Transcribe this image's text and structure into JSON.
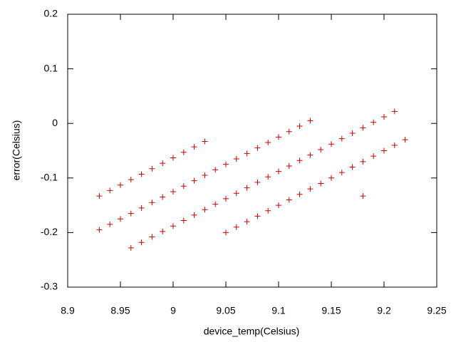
{
  "chart_data": {
    "type": "scatter",
    "xlabel": "device_temp(Celsius)",
    "ylabel": "error(Celsius)",
    "color": "#cc0000",
    "x": [
      8.93,
      8.94,
      8.95,
      8.96,
      8.97,
      8.98,
      8.99,
      9.0,
      9.01,
      9.02,
      9.03,
      8.93,
      8.94,
      8.95,
      8.96,
      8.97,
      8.98,
      8.99,
      9.0,
      9.01,
      9.02,
      9.03,
      9.04,
      9.05,
      9.06,
      9.07,
      9.08,
      9.09,
      9.1,
      9.11,
      9.12,
      9.13,
      8.96,
      8.97,
      8.98,
      8.99,
      9.0,
      9.01,
      9.02,
      9.03,
      9.04,
      9.05,
      9.06,
      9.07,
      9.08,
      9.09,
      9.1,
      9.11,
      9.12,
      9.13,
      9.14,
      9.15,
      9.16,
      9.17,
      9.18,
      9.19,
      9.2,
      9.21,
      9.05,
      9.06,
      9.07,
      9.08,
      9.09,
      9.1,
      9.11,
      9.12,
      9.13,
      9.14,
      9.15,
      9.16,
      9.17,
      9.18,
      9.19,
      9.2,
      9.21,
      9.22,
      9.18
    ],
    "values": [
      -0.133,
      -0.123,
      -0.113,
      -0.103,
      -0.093,
      -0.083,
      -0.073,
      -0.063,
      -0.053,
      -0.043,
      -0.033,
      -0.195,
      -0.185,
      -0.175,
      -0.165,
      -0.155,
      -0.145,
      -0.135,
      -0.125,
      -0.115,
      -0.105,
      -0.095,
      -0.085,
      -0.075,
      -0.065,
      -0.055,
      -0.045,
      -0.035,
      -0.025,
      -0.015,
      -0.005,
      0.005,
      -0.228,
      -0.218,
      -0.208,
      -0.198,
      -0.188,
      -0.178,
      -0.168,
      -0.158,
      -0.148,
      -0.138,
      -0.128,
      -0.118,
      -0.108,
      -0.098,
      -0.088,
      -0.078,
      -0.068,
      -0.058,
      -0.048,
      -0.038,
      -0.028,
      -0.018,
      -0.008,
      0.002,
      0.012,
      0.022,
      -0.2,
      -0.19,
      -0.18,
      -0.17,
      -0.16,
      -0.15,
      -0.14,
      -0.13,
      -0.12,
      -0.11,
      -0.1,
      -0.09,
      -0.08,
      -0.07,
      -0.06,
      -0.05,
      -0.04,
      -0.03,
      -0.133
    ],
    "xlim": [
      8.9,
      9.25
    ],
    "xticks": [
      8.9,
      8.95,
      9,
      9.05,
      9.1,
      9.15,
      9.2,
      9.25
    ],
    "ylim": [
      -0.3,
      0.2
    ],
    "yticks": [
      -0.3,
      -0.2,
      -0.1,
      0,
      0.1,
      0.2
    ],
    "grid": false
  }
}
